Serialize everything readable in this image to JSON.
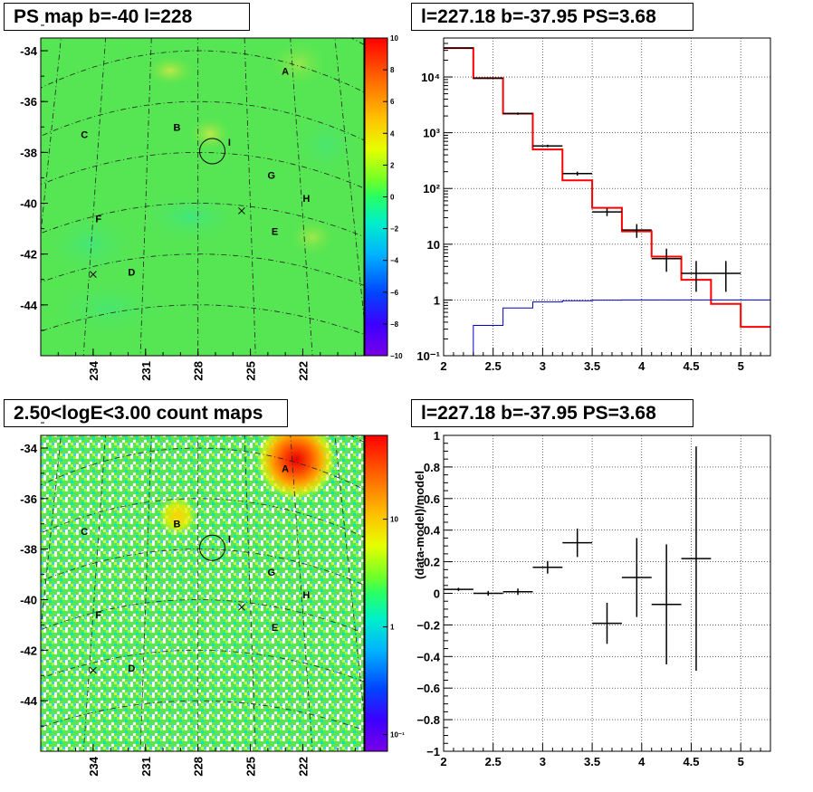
{
  "panels": {
    "ps_map": {
      "title": "PS map b=-40 l=228",
      "ytick_labels": [
        "-34",
        "-36",
        "-38",
        "-40",
        "-42",
        "-44"
      ],
      "xtick_labels": [
        "234",
        "231",
        "228",
        "225",
        "222"
      ],
      "colorbar_labels": [
        "10",
        "8",
        "6",
        "4",
        "2",
        "0",
        "−2",
        "−4",
        "−6",
        "−8",
        "−10"
      ],
      "source_labels": [
        "A",
        "B",
        "C",
        "D",
        "E",
        "F",
        "G",
        "H",
        "I"
      ]
    },
    "count_map": {
      "title": "2.50<logE<3.00 count maps",
      "ytick_labels": [
        "-34",
        "-36",
        "-38",
        "-40",
        "-42",
        "-44"
      ],
      "xtick_labels": [
        "234",
        "231",
        "228",
        "225",
        "222"
      ],
      "colorbar_labels": [
        "10",
        "1",
        "10⁻¹"
      ],
      "source_labels": [
        "A",
        "B",
        "C",
        "D",
        "E",
        "F",
        "G",
        "H",
        "I"
      ]
    },
    "spectrum": {
      "title": "l=227.18 b=-37.95 PS=3.68"
    },
    "residual": {
      "title": "l=227.18 b=-37.95 PS=3.68"
    }
  },
  "chart_data": [
    {
      "type": "heatmap",
      "title": "PS map b=-40 l=228",
      "xlabel": "",
      "ylabel": "",
      "xlim": [
        218.5,
        237
      ],
      "ylim": [
        -46,
        -33.5
      ],
      "zlim": [
        -10,
        10
      ],
      "xticks": [
        234,
        231,
        228,
        225,
        222
      ],
      "yticks": [
        -34,
        -36,
        -38,
        -40,
        -42,
        -44
      ],
      "colorbar_ticks": [
        10,
        8,
        6,
        4,
        2,
        0,
        -2,
        -4,
        -6,
        -8,
        -10
      ],
      "sources": [
        {
          "label": "A",
          "l": 223.0,
          "b": -34.8
        },
        {
          "label": "B",
          "l": 229.2,
          "b": -37.0
        },
        {
          "label": "C",
          "l": 234.5,
          "b": -37.3
        },
        {
          "label": "D",
          "l": 231.8,
          "b": -42.7
        },
        {
          "label": "E",
          "l": 223.6,
          "b": -41.1
        },
        {
          "label": "F",
          "l": 233.7,
          "b": -40.6
        },
        {
          "label": "G",
          "l": 223.8,
          "b": -38.9
        },
        {
          "label": "H",
          "l": 221.8,
          "b": -39.8
        },
        {
          "label": "I",
          "l": 226.2,
          "b": -37.6
        }
      ],
      "x_markers": [
        {
          "l": 234.0,
          "b": -42.8
        },
        {
          "l": 225.5,
          "b": -40.3
        }
      ],
      "circle": {
        "l": 227.18,
        "b": -37.95
      },
      "grid": true,
      "grid_style": "dashed",
      "colorscale": "rainbow",
      "background_value": 0.5
    },
    {
      "type": "line",
      "title": "l=227.18 b=-37.95 PS=3.68",
      "xlabel": "",
      "ylabel": "",
      "xlim": [
        2,
        5.3
      ],
      "ylim": [
        0.1,
        50000
      ],
      "yscale": "log",
      "xticks": [
        2,
        2.5,
        3,
        3.5,
        4,
        4.5,
        5
      ],
      "yticks": [
        0.1,
        1,
        10,
        100,
        1000,
        10000
      ],
      "ytick_labels": [
        "10⁻¹",
        "1",
        "10",
        "10²",
        "10³",
        "10⁴"
      ],
      "grid": true,
      "series": [
        {
          "role": "model",
          "color": "#ff0000",
          "style": "histogram",
          "edges": [
            2.0,
            2.3,
            2.6,
            2.9,
            3.2,
            3.5,
            3.8,
            4.1,
            4.4,
            4.7,
            5.0,
            5.3
          ],
          "values": [
            33000,
            9500,
            2200,
            500,
            140,
            45,
            17,
            6,
            2.3,
            0.85,
            0.33
          ]
        },
        {
          "role": "diffuse",
          "color": "#0000c8",
          "style": "histogram",
          "edges": [
            2.0,
            2.3,
            2.6,
            2.9,
            3.2,
            3.5,
            3.8,
            4.1,
            4.4,
            4.7,
            5.0,
            5.3
          ],
          "values": [
            0.09,
            0.35,
            0.72,
            0.92,
            0.97,
            0.99,
            1.0,
            1.0,
            1.0,
            1.0,
            1.0
          ]
        },
        {
          "role": "data",
          "color": "#000000",
          "style": "errorbars",
          "points": [
            {
              "x": 2.15,
              "y": 33000,
              "xerr": 0.15,
              "yerr_lo": 500,
              "yerr_hi": 500
            },
            {
              "x": 2.45,
              "y": 9500,
              "xerr": 0.15,
              "yerr_lo": 300,
              "yerr_hi": 300
            },
            {
              "x": 2.75,
              "y": 2200,
              "xerr": 0.15,
              "yerr_lo": 100,
              "yerr_hi": 100
            },
            {
              "x": 3.05,
              "y": 580,
              "xerr": 0.15,
              "yerr_lo": 30,
              "yerr_hi": 30
            },
            {
              "x": 3.35,
              "y": 185,
              "xerr": 0.15,
              "yerr_lo": 15,
              "yerr_hi": 15
            },
            {
              "x": 3.65,
              "y": 38,
              "xerr": 0.15,
              "yerr_lo": 6,
              "yerr_hi": 6
            },
            {
              "x": 3.95,
              "y": 18,
              "xerr": 0.15,
              "yerr_lo": 5,
              "yerr_hi": 5
            },
            {
              "x": 4.25,
              "y": 5.5,
              "xerr": 0.15,
              "yerr_lo": 2.3,
              "yerr_hi": 2.8
            },
            {
              "x": 4.55,
              "y": 3.0,
              "xerr": 0.15,
              "yerr_lo": 1.6,
              "yerr_hi": 2.0
            },
            {
              "x": 4.85,
              "y": 3.0,
              "xerr": 0.15,
              "yerr_lo": 1.6,
              "yerr_hi": 2.0
            }
          ]
        }
      ]
    },
    {
      "type": "heatmap",
      "title": "2.50<logE<3.00 count maps",
      "xlabel": "",
      "ylabel": "",
      "xlim": [
        218.5,
        237
      ],
      "ylim": [
        -46,
        -33.5
      ],
      "zscale": "log",
      "zlim": [
        0.07,
        60
      ],
      "xticks": [
        234,
        231,
        228,
        225,
        222
      ],
      "yticks": [
        -34,
        -36,
        -38,
        -40,
        -42,
        -44
      ],
      "colorbar_ticks": [
        10,
        1,
        0.1
      ],
      "sources": [
        {
          "label": "A",
          "l": 223.0,
          "b": -34.8
        },
        {
          "label": "B",
          "l": 229.2,
          "b": -37.0
        },
        {
          "label": "C",
          "l": 234.5,
          "b": -37.3
        },
        {
          "label": "D",
          "l": 231.8,
          "b": -42.7
        },
        {
          "label": "E",
          "l": 223.6,
          "b": -41.1
        },
        {
          "label": "F",
          "l": 233.7,
          "b": -40.6
        },
        {
          "label": "G",
          "l": 223.8,
          "b": -38.9
        },
        {
          "label": "H",
          "l": 221.8,
          "b": -39.8
        },
        {
          "label": "I",
          "l": 226.2,
          "b": -37.6
        }
      ],
      "x_markers": [
        {
          "l": 234.0,
          "b": -42.8
        },
        {
          "l": 225.5,
          "b": -40.3
        }
      ],
      "circle": {
        "l": 227.18,
        "b": -37.95
      },
      "grid": true,
      "grid_style": "dashed",
      "colorscale": "rainbow",
      "bright_sources": [
        {
          "label": "A",
          "peak": 55
        },
        {
          "label": "B",
          "peak": 8
        }
      ]
    },
    {
      "type": "scatter",
      "title": "l=227.18 b=-37.95 PS=3.68",
      "xlabel": "",
      "ylabel": "(data-model)/model",
      "xlim": [
        2,
        5.3
      ],
      "ylim": [
        -1,
        1
      ],
      "xticks": [
        2,
        2.5,
        3,
        3.5,
        4,
        4.5,
        5
      ],
      "yticks": [
        -1,
        -0.8,
        -0.6,
        -0.4,
        -0.2,
        0,
        0.2,
        0.4,
        0.6,
        0.8,
        1
      ],
      "grid": true,
      "points": [
        {
          "x": 2.15,
          "y": 0.025,
          "xerr": 0.15,
          "yerr": 0.01
        },
        {
          "x": 2.45,
          "y": 0.0,
          "xerr": 0.15,
          "yerr": 0.015
        },
        {
          "x": 2.75,
          "y": 0.01,
          "xerr": 0.15,
          "yerr": 0.02
        },
        {
          "x": 3.05,
          "y": 0.165,
          "xerr": 0.15,
          "yerr": 0.04
        },
        {
          "x": 3.35,
          "y": 0.32,
          "xerr": 0.15,
          "yerr": 0.09
        },
        {
          "x": 3.65,
          "y": -0.19,
          "xerr": 0.15,
          "yerr": 0.13
        },
        {
          "x": 3.95,
          "y": 0.1,
          "xerr": 0.15,
          "yerr": 0.25
        },
        {
          "x": 4.25,
          "y": -0.07,
          "xerr": 0.15,
          "yerr": 0.38
        },
        {
          "x": 4.55,
          "y": 0.22,
          "xerr": 0.15,
          "yerr": 0.71
        }
      ]
    }
  ]
}
